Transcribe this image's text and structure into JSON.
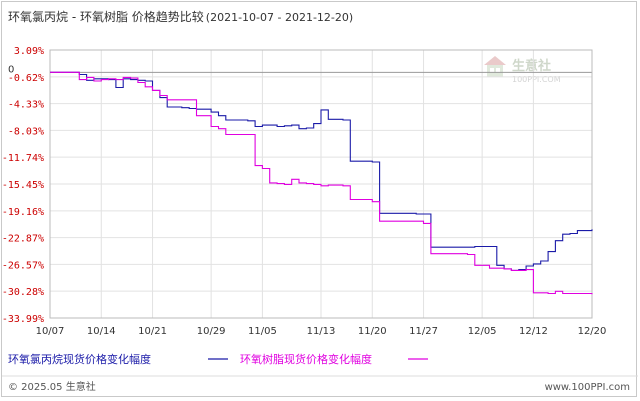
{
  "chart_data": {
    "type": "line",
    "title": "环氧氯丙烷 - 环氧树脂 价格趋势比较",
    "date_range": "(2021-10-07 - 2021-12-20)",
    "xlabel": "",
    "ylabel": "",
    "ylim": [
      -33.99,
      3.09
    ],
    "y_ticks": [
      "3.09%",
      "-0.62%",
      "-4.33%",
      "-8.03%",
      "-11.74%",
      "-15.45%",
      "-19.16%",
      "-22.87%",
      "-26.57%",
      "-30.28%",
      "-33.99%"
    ],
    "y_tick_values": [
      3.09,
      -0.62,
      -4.33,
      -8.03,
      -11.74,
      -15.45,
      -19.16,
      -22.87,
      -26.57,
      -30.28,
      -33.99
    ],
    "x_tick_labels": [
      "10/07",
      "10/14",
      "10/21",
      "10/29",
      "11/05",
      "11/13",
      "11/20",
      "11/27",
      "12/05",
      "12/12",
      "12/20"
    ],
    "x_tick_days": [
      0,
      7,
      14,
      22,
      29,
      37,
      44,
      51,
      59,
      66,
      74
    ],
    "x_range": [
      0,
      74
    ],
    "zero_label": "0",
    "grid": true,
    "legend_position": "bottom",
    "series": [
      {
        "name": "环氧氯丙烷现货价格变化幅度",
        "color": "#1a1aa8",
        "points": [
          [
            0,
            0
          ],
          [
            3,
            0
          ],
          [
            4,
            -0.3
          ],
          [
            5,
            -1.1
          ],
          [
            6,
            -0.9
          ],
          [
            7,
            -0.9
          ],
          [
            8,
            -1.0
          ],
          [
            9,
            -2.1
          ],
          [
            10,
            -0.9
          ],
          [
            11,
            -1.0
          ],
          [
            12,
            -1.1
          ],
          [
            13,
            -1.2
          ],
          [
            14,
            -2.5
          ],
          [
            15,
            -3.5
          ],
          [
            16,
            -4.8
          ],
          [
            18,
            -4.9
          ],
          [
            19,
            -5.0
          ],
          [
            20,
            -5.1
          ],
          [
            22,
            -5.5
          ],
          [
            23,
            -6.0
          ],
          [
            24,
            -6.6
          ],
          [
            27,
            -6.7
          ],
          [
            28,
            -7.5
          ],
          [
            29,
            -7.3
          ],
          [
            30,
            -7.3
          ],
          [
            31,
            -7.5
          ],
          [
            32,
            -7.4
          ],
          [
            33,
            -7.3
          ],
          [
            34,
            -7.8
          ],
          [
            35,
            -7.7
          ],
          [
            36,
            -7.1
          ],
          [
            37,
            -5.2
          ],
          [
            38,
            -6.5
          ],
          [
            40,
            -6.6
          ],
          [
            41,
            -12.3
          ],
          [
            44,
            -12.4
          ],
          [
            45,
            -19.5
          ],
          [
            50,
            -19.6
          ],
          [
            51,
            -19.6
          ],
          [
            52,
            -24.2
          ],
          [
            58,
            -24.1
          ],
          [
            61,
            -26.7
          ],
          [
            62,
            -27.2
          ],
          [
            63,
            -27.4
          ],
          [
            64,
            -27.3
          ],
          [
            65,
            -26.8
          ],
          [
            66,
            -26.5
          ],
          [
            67,
            -26.1
          ],
          [
            68,
            -24.8
          ],
          [
            69,
            -23.3
          ],
          [
            70,
            -22.4
          ],
          [
            71,
            -22.3
          ],
          [
            72,
            -21.9
          ],
          [
            74,
            -21.7
          ]
        ]
      },
      {
        "name": "环氧树脂现货价格变化幅度",
        "color": "#e000e0",
        "points": [
          [
            0,
            0
          ],
          [
            3,
            0
          ],
          [
            4,
            -1.0
          ],
          [
            5,
            -0.7
          ],
          [
            6,
            -1.2
          ],
          [
            7,
            -1.0
          ],
          [
            8,
            -0.9
          ],
          [
            9,
            -1.0
          ],
          [
            10,
            -0.7
          ],
          [
            11,
            -0.8
          ],
          [
            12,
            -1.4
          ],
          [
            13,
            -2.0
          ],
          [
            14,
            -2.5
          ],
          [
            15,
            -3.2
          ],
          [
            16,
            -3.8
          ],
          [
            19,
            -3.8
          ],
          [
            20,
            -6.0
          ],
          [
            22,
            -7.5
          ],
          [
            23,
            -7.8
          ],
          [
            24,
            -8.6
          ],
          [
            27,
            -8.6
          ],
          [
            28,
            -12.9
          ],
          [
            29,
            -13.3
          ],
          [
            30,
            -15.3
          ],
          [
            31,
            -15.4
          ],
          [
            32,
            -15.5
          ],
          [
            33,
            -14.8
          ],
          [
            34,
            -15.3
          ],
          [
            35,
            -15.4
          ],
          [
            36,
            -15.5
          ],
          [
            37,
            -15.7
          ],
          [
            38,
            -15.6
          ],
          [
            40,
            -15.7
          ],
          [
            41,
            -17.6
          ],
          [
            44,
            -17.9
          ],
          [
            45,
            -20.6
          ],
          [
            51,
            -20.9
          ],
          [
            52,
            -25.1
          ],
          [
            57,
            -25.2
          ],
          [
            58,
            -26.7
          ],
          [
            60,
            -27.1
          ],
          [
            62,
            -27.2
          ],
          [
            63,
            -27.4
          ],
          [
            65,
            -27.3
          ],
          [
            66,
            -30.5
          ],
          [
            68,
            -30.6
          ],
          [
            69,
            -30.3
          ],
          [
            70,
            -30.6
          ],
          [
            74,
            -30.7
          ]
        ]
      }
    ]
  },
  "watermark": {
    "brand": "生意社",
    "url": "100PPI.COM"
  },
  "footer": {
    "left": "© 2025.05 生意社",
    "right": "www.100PPI.com"
  }
}
